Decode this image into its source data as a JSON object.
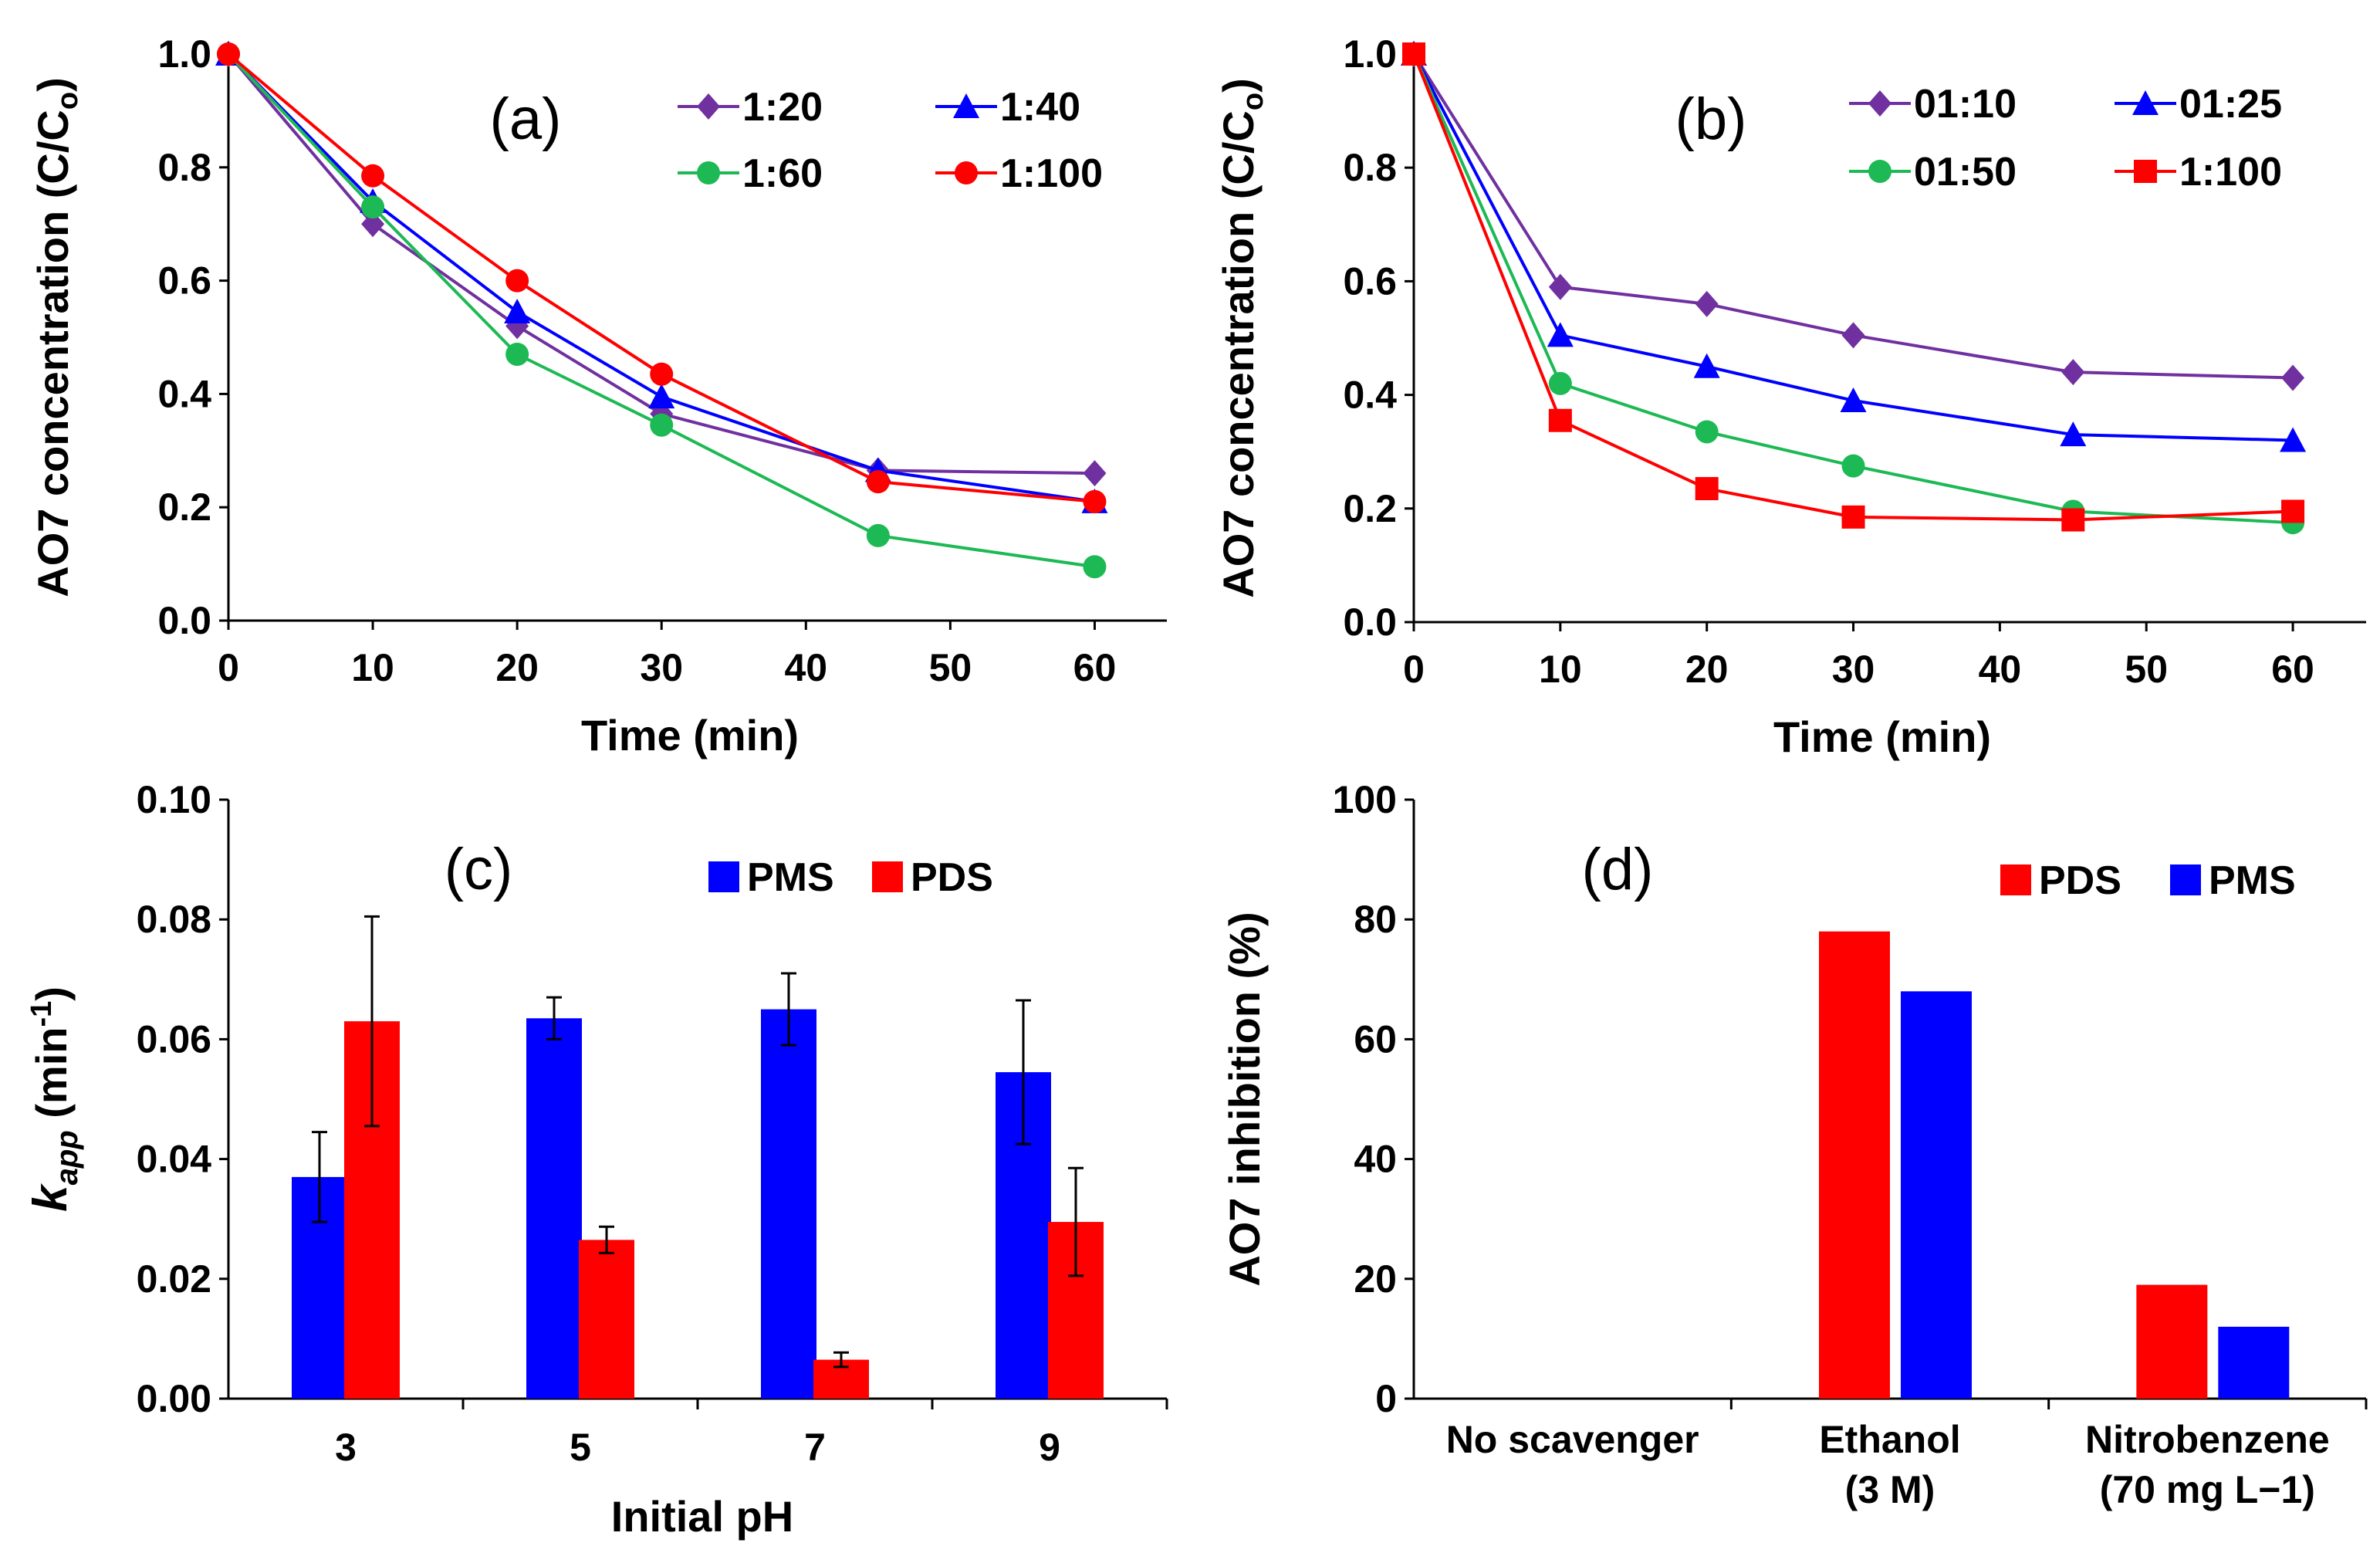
{
  "colors": {
    "purple": "#7030a0",
    "blue": "#0000ff",
    "green": "#00b050",
    "red": "#ff0000",
    "teal_green": "#1db954",
    "axis": "#000000"
  },
  "chart_data": [
    {
      "panel": "(a)",
      "type": "line",
      "xlabel": "Time (min)",
      "ylabel": "AO7 concentration (C/C",
      "ylabel_sub": "o",
      "ylabel_end": ")",
      "xlim": [
        0,
        65
      ],
      "ylim": [
        0,
        1.0
      ],
      "xticks": [
        0,
        10,
        20,
        30,
        40,
        50,
        60
      ],
      "yticks": [
        "0.0",
        "0.2",
        "0.4",
        "0.6",
        "0.8",
        "1.0"
      ],
      "x": [
        0,
        10,
        20,
        30,
        45,
        60
      ],
      "legend_position": "top-right",
      "series": [
        {
          "name": "1:20",
          "marker": "diamond",
          "color": "#7030a0",
          "values": [
            1.0,
            0.7,
            0.52,
            0.365,
            0.265,
            0.26
          ]
        },
        {
          "name": "1:40",
          "marker": "triangle",
          "color": "#0000ff",
          "values": [
            1.0,
            0.74,
            0.545,
            0.395,
            0.265,
            0.21
          ]
        },
        {
          "name": "1:60",
          "marker": "circle",
          "color": "#1db954",
          "values": [
            1.0,
            0.73,
            0.47,
            0.345,
            0.15,
            0.095
          ]
        },
        {
          "name": "1:100",
          "marker": "circle",
          "color": "#ff0000",
          "values": [
            1.0,
            0.785,
            0.6,
            0.435,
            0.245,
            0.21
          ]
        }
      ]
    },
    {
      "panel": "(b)",
      "type": "line",
      "xlabel": "Time (min)",
      "ylabel": "AO7 concentration (C/C",
      "ylabel_sub": "o",
      "ylabel_end": ")",
      "xlim": [
        0,
        65
      ],
      "ylim": [
        0,
        1.0
      ],
      "xticks": [
        0,
        10,
        20,
        30,
        40,
        50,
        60
      ],
      "yticks": [
        "0.0",
        "0.2",
        "0.4",
        "0.6",
        "0.8",
        "1.0"
      ],
      "x": [
        0,
        10,
        20,
        30,
        45,
        60
      ],
      "legend_position": "top-right",
      "series": [
        {
          "name": "01:10",
          "marker": "diamond",
          "color": "#7030a0",
          "values": [
            1.0,
            0.59,
            0.56,
            0.505,
            0.44,
            0.43
          ]
        },
        {
          "name": "01:25",
          "marker": "triangle",
          "color": "#0000ff",
          "values": [
            1.0,
            0.505,
            0.45,
            0.39,
            0.33,
            0.32
          ]
        },
        {
          "name": "01:50",
          "marker": "circle",
          "color": "#1db954",
          "values": [
            1.0,
            0.42,
            0.335,
            0.275,
            0.195,
            0.175
          ]
        },
        {
          "name": "1:100",
          "marker": "square",
          "color": "#ff0000",
          "values": [
            1.0,
            0.355,
            0.235,
            0.185,
            0.18,
            0.195
          ]
        }
      ]
    },
    {
      "panel": "(c)",
      "type": "bar",
      "xlabel": "Initial pH",
      "ylabel": "k",
      "ylabel_sub": "app",
      "ylabel_unit": "(min",
      "ylabel_sup": "-1",
      "ylabel_end": ")",
      "ylim": [
        0,
        0.1
      ],
      "yticks": [
        "0.00",
        "0.02",
        "0.04",
        "0.06",
        "0.08",
        "0.10"
      ],
      "categories": [
        "3",
        "5",
        "7",
        "9"
      ],
      "legend_position": "top-right",
      "series": [
        {
          "name": "PMS",
          "color": "#0000ff",
          "values": [
            0.037,
            0.0635,
            0.065,
            0.0545
          ],
          "errors": [
            0.0075,
            0.0035,
            0.006,
            0.012
          ]
        },
        {
          "name": "PDS",
          "color": "#ff0000",
          "values": [
            0.063,
            0.0265,
            0.0065,
            0.0295
          ],
          "errors": [
            0.0175,
            0.0022,
            0.0012,
            0.009
          ]
        }
      ]
    },
    {
      "panel": "(d)",
      "type": "bar",
      "xlabel": "",
      "ylabel": "AO7 inhibition  (%)",
      "ylim": [
        0,
        100
      ],
      "yticks": [
        "0",
        "20",
        "40",
        "60",
        "80",
        "100"
      ],
      "categories": [
        {
          "line1": "No scavenger",
          "line2": ""
        },
        {
          "line1": "Ethanol",
          "line2": "(3 M)"
        },
        {
          "line1": "Nitrobenzene",
          "line2": "(70 mg L−1)"
        }
      ],
      "legend_position": "top-right",
      "series": [
        {
          "name": "PDS",
          "color": "#ff0000",
          "values": [
            0,
            78,
            19
          ]
        },
        {
          "name": "PMS",
          "color": "#0000ff",
          "values": [
            0,
            68,
            12
          ]
        }
      ]
    }
  ]
}
